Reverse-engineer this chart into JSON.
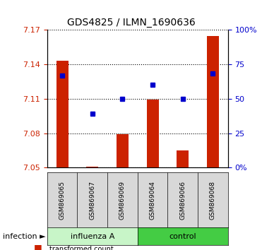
{
  "title": "GDS4825 / ILMN_1690636",
  "samples": [
    "GSM869065",
    "GSM869067",
    "GSM869069",
    "GSM869064",
    "GSM869066",
    "GSM869068"
  ],
  "groups": [
    "influenza A",
    "influenza A",
    "influenza A",
    "control",
    "control",
    "control"
  ],
  "group_labels": [
    "influenza A",
    "control"
  ],
  "group_colors": [
    "#aaffaa",
    "#00cc00"
  ],
  "factor_label": "infection",
  "ylim": [
    7.05,
    7.17
  ],
  "yticks": [
    7.05,
    7.08,
    7.11,
    7.14,
    7.17
  ],
  "right_yticks": [
    0,
    25,
    50,
    75,
    100
  ],
  "right_ylim_labels": [
    "0%",
    "25",
    "50",
    "75",
    "100%"
  ],
  "bar_values": [
    7.143,
    7.051,
    7.079,
    7.109,
    7.065,
    7.165
  ],
  "bar_base": 7.05,
  "percentile_values": [
    7.13,
    7.097,
    7.11,
    7.122,
    7.11,
    7.132
  ],
  "bar_color": "#cc2200",
  "percentile_color": "#0000cc",
  "legend_square_size": 8,
  "xlabel_rotation": 90,
  "tick_label_fontsize": 8,
  "axis_label_color_left": "#cc2200",
  "axis_label_color_right": "#0000cc",
  "bg_color": "#f0f0f0",
  "plot_bg": "#ffffff",
  "grid_style": "dotted"
}
